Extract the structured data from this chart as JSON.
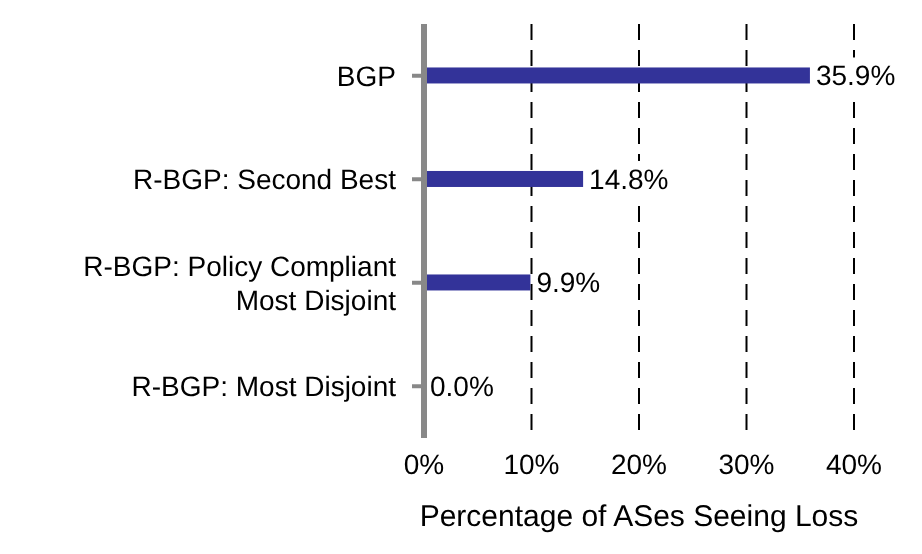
{
  "chart_data": {
    "type": "bar",
    "orientation": "horizontal",
    "xlabel": "Percentage of ASes Seeing Loss",
    "categories": [
      "BGP",
      "R-BGP: Second Best",
      "R-BGP: Policy Compliant Most Disjoint",
      "R-BGP: Most Disjoint"
    ],
    "values": [
      35.9,
      14.8,
      9.9,
      0.0
    ],
    "value_labels": [
      "35.9%",
      "14.8%",
      "9.9%",
      "0.0%"
    ],
    "color": "#333399",
    "xlim": [
      0,
      40
    ],
    "xticks": [
      {
        "value": 0,
        "label": "0%"
      },
      {
        "value": 10,
        "label": "10%"
      },
      {
        "value": 20,
        "label": "20%"
      },
      {
        "value": 30,
        "label": "30%"
      },
      {
        "value": 40,
        "label": "40%"
      }
    ],
    "grid": "x"
  }
}
